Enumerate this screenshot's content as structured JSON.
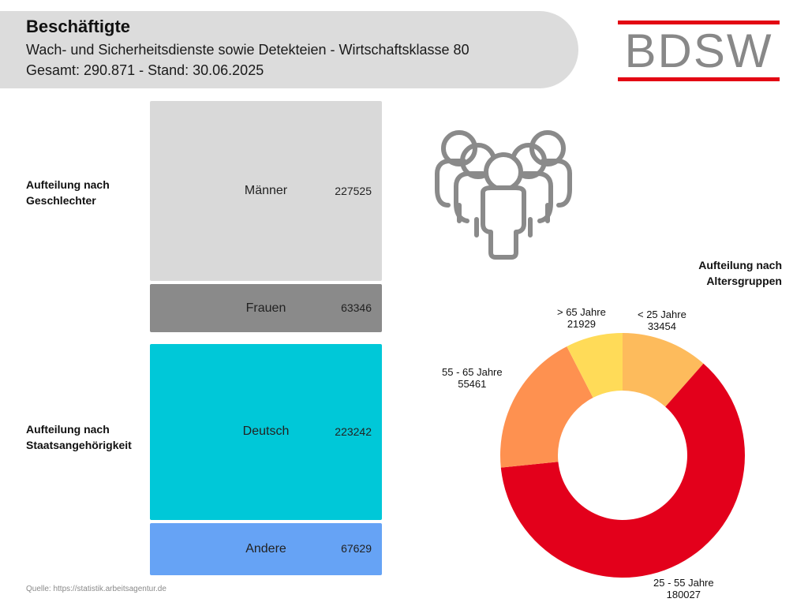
{
  "header": {
    "title": "Beschäftigte",
    "subtitle": "Wach- und Sicherheitsdienste sowie Detekteien - Wirtschaftsklasse 80",
    "total": "Gesamt: 290.871 - Stand: 30.06.2025"
  },
  "logo": {
    "text": "BDSW",
    "accent": "#e30613",
    "text_color": "#888888"
  },
  "gender": {
    "label_line1": "Aufteilung nach",
    "label_line2": "Geschlechter",
    "items": [
      {
        "name": "Männer",
        "value": "227525",
        "color": "#d9d9d9"
      },
      {
        "name": "Frauen",
        "value": "63346",
        "color": "#8a8a8a"
      }
    ]
  },
  "nationality": {
    "label_line1": "Aufteilung nach",
    "label_line2": "Staatsangehörigkeit",
    "items": [
      {
        "name": "Deutsch",
        "value": "223242",
        "color": "#00c8d8"
      },
      {
        "name": "Andere",
        "value": "67629",
        "color": "#66a3f5"
      }
    ]
  },
  "people_icon": "people-group-icon",
  "source": "Quelle: https://statistik.arbeitsagentur.de",
  "chart_data": [
    {
      "type": "bar",
      "title": "Aufteilung nach Geschlechter",
      "categories": [
        "Männer",
        "Frauen"
      ],
      "values": [
        227525,
        63346
      ],
      "orientation": "stacked-vertical"
    },
    {
      "type": "bar",
      "title": "Aufteilung nach Staatsangehörigkeit",
      "categories": [
        "Deutsch",
        "Andere"
      ],
      "values": [
        223242,
        67629
      ],
      "orientation": "stacked-vertical"
    },
    {
      "type": "pie",
      "variant": "donut",
      "title_line1": "Aufteilung nach",
      "title_line2": "Altersgruppen",
      "slices": [
        {
          "label": "< 25 Jahre",
          "value": 33454,
          "color": "#fdbb5c"
        },
        {
          "label": "25 - 55 Jahre",
          "value": 180027,
          "color": "#e3001b"
        },
        {
          "label": "55 - 65 Jahre",
          "value": 55461,
          "color": "#fe9150"
        },
        {
          "label": "> 65 Jahre",
          "value": 21929,
          "color": "#ffdb58"
        }
      ]
    }
  ]
}
